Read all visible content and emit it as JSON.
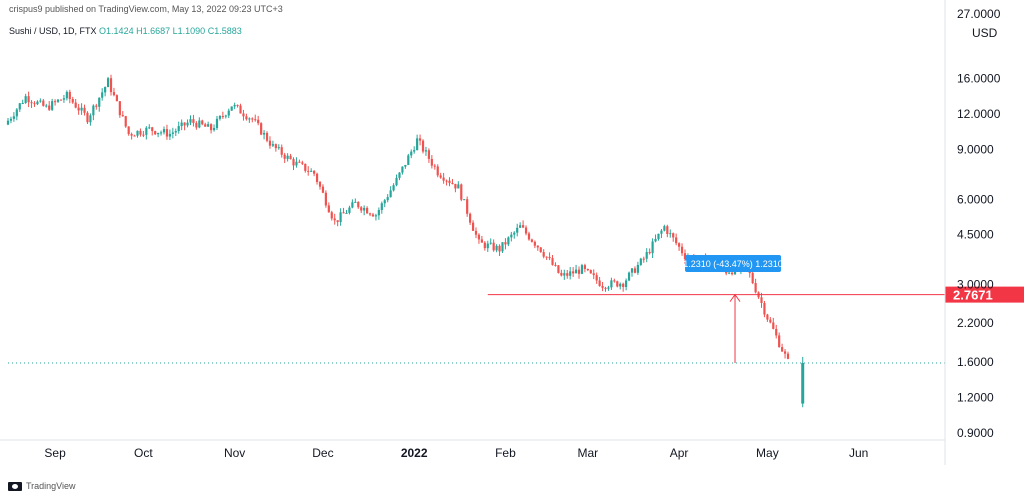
{
  "header": {
    "published": "crispus9 published on TradingView.com, May 13, 2022 09:23 UTC+3"
  },
  "symbol": {
    "name": "Sushi / USD, 1D, FTX",
    "o": "O1.1424",
    "h": "H1.6687",
    "l": "L1.1090",
    "c": "C1.5883"
  },
  "footer": {
    "brand": "TradingView"
  },
  "colors": {
    "up": "#26a69a",
    "down": "#ef5350",
    "level": "#f23645",
    "measure": "#2196f3"
  },
  "chart_data": {
    "type": "candlestick",
    "title": "Sushi / USD, 1D, FTX",
    "currency_label": "USD",
    "y_scale": "log",
    "ylim": [
      0.85,
      27
    ],
    "y_ticks": [
      "27.0000",
      "16.0000",
      "12.0000",
      "9.0000",
      "6.0000",
      "4.5000",
      "3.0000",
      "2.2000",
      "1.6000",
      "1.2000",
      "0.9000"
    ],
    "x_ticks": [
      "Sep",
      "Oct",
      "Nov",
      "Dec",
      "2022",
      "Feb",
      "Mar",
      "Apr",
      "May",
      "Jun"
    ],
    "horizontal_line": {
      "value": 2.7671,
      "label": "2.7671"
    },
    "last_price_line": 1.5883,
    "measure_label": "1.2310 (-43.47%) 1.2310",
    "price_path_weekly": [
      {
        "date": "2021-08-16",
        "close": 11.0
      },
      {
        "date": "2021-08-23",
        "close": 13.8
      },
      {
        "date": "2021-08-30",
        "close": 12.6
      },
      {
        "date": "2021-09-06",
        "close": 13.9
      },
      {
        "date": "2021-09-13",
        "close": 11.6
      },
      {
        "date": "2021-09-20",
        "close": 15.6
      },
      {
        "date": "2021-09-27",
        "close": 10.2
      },
      {
        "date": "2021-10-04",
        "close": 10.6
      },
      {
        "date": "2021-10-11",
        "close": 10.2
      },
      {
        "date": "2021-10-18",
        "close": 11.3
      },
      {
        "date": "2021-10-25",
        "close": 10.6
      },
      {
        "date": "2021-11-01",
        "close": 12.9
      },
      {
        "date": "2021-11-08",
        "close": 11.5
      },
      {
        "date": "2021-11-15",
        "close": 9.2
      },
      {
        "date": "2021-11-22",
        "close": 8.1
      },
      {
        "date": "2021-11-29",
        "close": 7.4
      },
      {
        "date": "2021-12-06",
        "close": 5.0
      },
      {
        "date": "2021-12-13",
        "close": 5.8
      },
      {
        "date": "2021-12-20",
        "close": 5.3
      },
      {
        "date": "2021-12-27",
        "close": 7.0
      },
      {
        "date": "2022-01-03",
        "close": 9.7
      },
      {
        "date": "2022-01-10",
        "close": 7.5
      },
      {
        "date": "2022-01-17",
        "close": 6.6
      },
      {
        "date": "2022-01-24",
        "close": 4.2
      },
      {
        "date": "2022-01-31",
        "close": 4.0
      },
      {
        "date": "2022-02-07",
        "close": 4.8
      },
      {
        "date": "2022-02-14",
        "close": 4.0
      },
      {
        "date": "2022-02-21",
        "close": 3.2
      },
      {
        "date": "2022-02-28",
        "close": 3.4
      },
      {
        "date": "2022-03-07",
        "close": 3.0
      },
      {
        "date": "2022-03-14",
        "close": 3.05
      },
      {
        "date": "2022-03-21",
        "close": 3.7
      },
      {
        "date": "2022-03-28",
        "close": 4.8
      },
      {
        "date": "2022-04-04",
        "close": 3.8
      },
      {
        "date": "2022-04-11",
        "close": 3.6
      },
      {
        "date": "2022-04-18",
        "close": 3.35
      },
      {
        "date": "2022-04-25",
        "close": 3.45
      },
      {
        "date": "2022-05-02",
        "close": 2.3
      },
      {
        "date": "2022-05-09",
        "close": 1.6
      }
    ]
  }
}
